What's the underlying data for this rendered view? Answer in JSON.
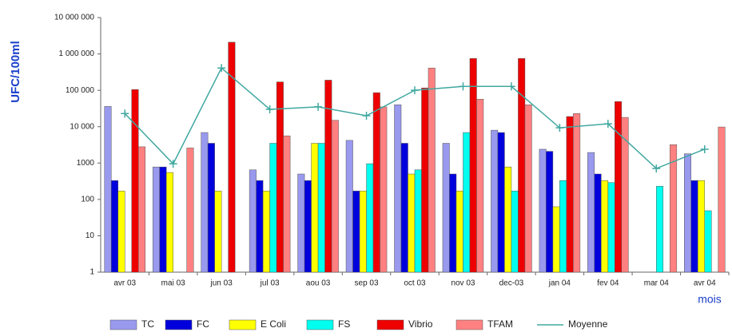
{
  "chart_data": {
    "type": "bar",
    "log_scale": true,
    "y_label": "UFC/100ml",
    "x_label": "mois",
    "categories": [
      "avr 03",
      "mai 03",
      "jun 03",
      "jul 03",
      "aou 03",
      "sep 03",
      "oct 03",
      "nov 03",
      "dec-03",
      "jan 04",
      "fev 04",
      "mar 04",
      "avr 04"
    ],
    "ylim": [
      1,
      10000000
    ],
    "yticks": [
      1,
      10,
      100,
      1000,
      {
        "value": 10000,
        "label": "10 000"
      },
      {
        "value": 100000,
        "label": "100 000"
      },
      {
        "value": 1000000,
        "label": "1 000 000"
      },
      {
        "value": 10000000,
        "label": "10 000 000"
      }
    ],
    "series": [
      {
        "name": "TC",
        "type": "bar",
        "color": "#9999ee",
        "values": [
          36000,
          780,
          6900,
          650,
          500,
          4200,
          40000,
          3500,
          8000,
          2400,
          1950,
          null,
          1800
        ]
      },
      {
        "name": "FC",
        "type": "bar",
        "color": "#0000dd",
        "values": [
          330,
          780,
          3500,
          330,
          330,
          170,
          3500,
          500,
          6900,
          2100,
          500,
          null,
          330
        ]
      },
      {
        "name": "E Coli",
        "type": "bar",
        "color": "#ffff00",
        "values": [
          170,
          550,
          170,
          170,
          3500,
          170,
          500,
          170,
          780,
          63,
          330,
          null,
          330
        ]
      },
      {
        "name": "FS",
        "type": "bar",
        "color": "#00ffee",
        "values": [
          null,
          null,
          null,
          3500,
          3500,
          960,
          650,
          6900,
          170,
          330,
          290,
          230,
          49
        ]
      },
      {
        "name": "Vibrio",
        "type": "bar",
        "color": "#ee0000",
        "values": [
          105000,
          null,
          2100000,
          170000,
          190000,
          86000,
          116000,
          750000,
          750000,
          19000,
          49000,
          null,
          null
        ]
      },
      {
        "name": "TFAM",
        "type": "bar",
        "color": "#ff8080",
        "values": [
          2800,
          2600,
          null,
          5600,
          15000,
          35000,
          410000,
          57000,
          40000,
          23000,
          18000,
          3200,
          9800
        ]
      },
      {
        "name": "Moyenne",
        "type": "line",
        "color": "#40a8a0",
        "values": [
          23000,
          950,
          410000,
          30000,
          35000,
          20000,
          100000,
          128000,
          128000,
          9300,
          12000,
          710,
          2400
        ]
      }
    ]
  }
}
